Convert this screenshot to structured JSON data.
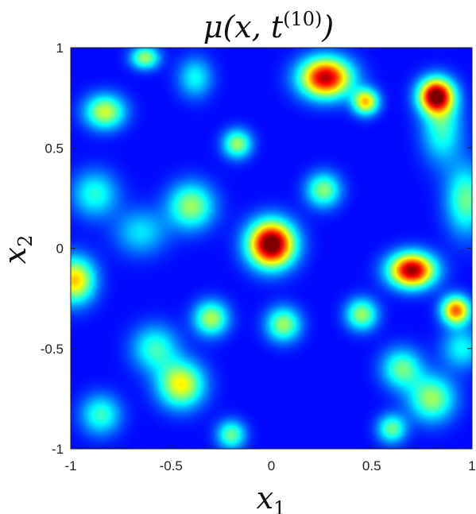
{
  "chart_data": {
    "type": "heatmap",
    "title": "μ(x, t(10))",
    "title_parts": {
      "base": "μ(x, t",
      "sup": "(10)",
      "close": ")"
    },
    "xlabel": {
      "base": "x",
      "sub": "1"
    },
    "ylabel": {
      "base": "x",
      "sub": "2"
    },
    "xlim": [
      -1,
      1
    ],
    "ylim": [
      -1,
      1
    ],
    "x_ticks": [
      -1,
      -0.5,
      0,
      0.5,
      1
    ],
    "y_ticks": [
      -1,
      -0.5,
      0,
      0.5,
      1
    ],
    "x_tick_labels": [
      "-1",
      "-0.5",
      "0",
      "0.5",
      "1"
    ],
    "y_tick_labels": [
      "-1",
      "-0.5",
      "0",
      "0.5",
      "1"
    ],
    "colormap": "jet",
    "grid": false,
    "blobs": [
      {
        "x": 0.0,
        "y": 0.02,
        "amp": 0.95,
        "sx": 0.08,
        "sy": 0.08
      },
      {
        "x": 0.27,
        "y": 0.85,
        "amp": 0.82,
        "sx": 0.09,
        "sy": 0.07
      },
      {
        "x": 0.47,
        "y": 0.73,
        "amp": 0.55,
        "sx": 0.045,
        "sy": 0.045
      },
      {
        "x": 0.82,
        "y": 0.76,
        "amp": 0.85,
        "sx": 0.06,
        "sy": 0.06
      },
      {
        "x": 0.85,
        "y": 0.6,
        "amp": 0.3,
        "sx": 0.07,
        "sy": 0.12
      },
      {
        "x": 0.7,
        "y": -0.11,
        "amp": 0.85,
        "sx": 0.08,
        "sy": 0.06
      },
      {
        "x": 0.92,
        "y": -0.31,
        "amp": 0.65,
        "sx": 0.05,
        "sy": 0.05
      },
      {
        "x": -0.83,
        "y": 0.68,
        "amp": 0.45,
        "sx": 0.07,
        "sy": 0.06
      },
      {
        "x": -0.63,
        "y": 0.95,
        "amp": 0.4,
        "sx": 0.05,
        "sy": 0.04
      },
      {
        "x": -0.38,
        "y": 0.85,
        "amp": 0.25,
        "sx": 0.06,
        "sy": 0.07
      },
      {
        "x": -0.17,
        "y": 0.52,
        "amp": 0.4,
        "sx": 0.05,
        "sy": 0.05
      },
      {
        "x": -0.4,
        "y": 0.21,
        "amp": 0.4,
        "sx": 0.08,
        "sy": 0.08
      },
      {
        "x": 0.26,
        "y": 0.29,
        "amp": 0.38,
        "sx": 0.06,
        "sy": 0.06
      },
      {
        "x": 0.97,
        "y": 0.24,
        "amp": 0.35,
        "sx": 0.07,
        "sy": 0.12
      },
      {
        "x": -0.98,
        "y": -0.16,
        "amp": 0.55,
        "sx": 0.07,
        "sy": 0.08
      },
      {
        "x": -0.88,
        "y": 0.27,
        "amp": 0.28,
        "sx": 0.08,
        "sy": 0.08
      },
      {
        "x": -0.65,
        "y": 0.08,
        "amp": 0.22,
        "sx": 0.09,
        "sy": 0.08
      },
      {
        "x": -0.3,
        "y": -0.35,
        "amp": 0.42,
        "sx": 0.06,
        "sy": 0.06
      },
      {
        "x": 0.06,
        "y": -0.38,
        "amp": 0.4,
        "sx": 0.06,
        "sy": 0.06
      },
      {
        "x": 0.45,
        "y": -0.33,
        "amp": 0.4,
        "sx": 0.055,
        "sy": 0.055
      },
      {
        "x": -0.45,
        "y": -0.68,
        "amp": 0.5,
        "sx": 0.08,
        "sy": 0.08
      },
      {
        "x": -0.58,
        "y": -0.5,
        "amp": 0.3,
        "sx": 0.08,
        "sy": 0.08
      },
      {
        "x": -0.85,
        "y": -0.83,
        "amp": 0.3,
        "sx": 0.07,
        "sy": 0.07
      },
      {
        "x": -0.2,
        "y": -0.93,
        "amp": 0.35,
        "sx": 0.05,
        "sy": 0.05
      },
      {
        "x": 0.65,
        "y": -0.6,
        "amp": 0.35,
        "sx": 0.07,
        "sy": 0.07
      },
      {
        "x": 0.8,
        "y": -0.75,
        "amp": 0.4,
        "sx": 0.08,
        "sy": 0.08
      },
      {
        "x": 0.6,
        "y": -0.9,
        "amp": 0.35,
        "sx": 0.05,
        "sy": 0.05
      },
      {
        "x": 0.95,
        "y": -0.5,
        "amp": 0.25,
        "sx": 0.07,
        "sy": 0.07
      }
    ]
  }
}
